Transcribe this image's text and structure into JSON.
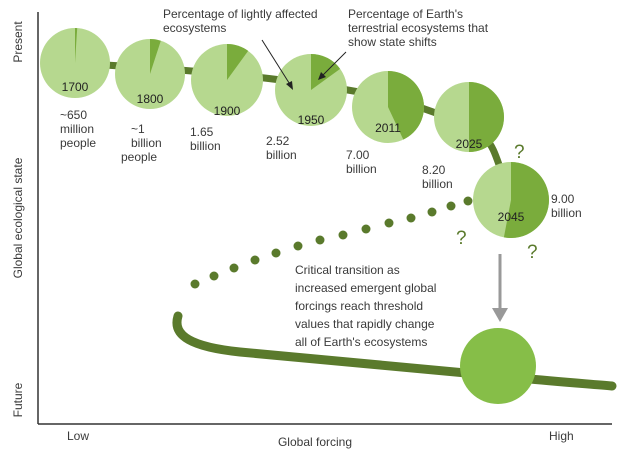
{
  "axes": {
    "y_label": "Global ecological state",
    "y_top": "Present",
    "y_bottom": "Future",
    "x_label": "Global forcing",
    "x_low": "Low",
    "x_high": "High"
  },
  "annotations": {
    "lightly_affected": [
      "Percentage of lightly affected",
      "ecosystems"
    ],
    "state_shifts": [
      "Percentage of Earth's",
      "terrestrial ecosystems that",
      "show state shifts"
    ],
    "critical_transition": [
      "Critical transition as",
      "increased emergent global",
      "forcings reach threshold",
      "values that rapidly change",
      "all of Earth's ecosystems"
    ],
    "question_mark": "?"
  },
  "timeline": [
    {
      "year": "1700",
      "population": [
        "~650",
        "million",
        "people"
      ],
      "shifted_fraction": 0.01
    },
    {
      "year": "1800",
      "population": [
        "~1",
        "billion",
        "people"
      ],
      "shifted_fraction": 0.05
    },
    {
      "year": "1900",
      "population": [
        "1.65",
        "billion"
      ],
      "shifted_fraction": 0.1
    },
    {
      "year": "1950",
      "population": [
        "2.52",
        "billion"
      ],
      "shifted_fraction": 0.15
    },
    {
      "year": "2011",
      "population": [
        "7.00",
        "billion"
      ],
      "shifted_fraction": 0.43
    },
    {
      "year": "2025",
      "population": [
        "8.20",
        "billion"
      ],
      "shifted_fraction": 0.5
    },
    {
      "year": "2045",
      "population": [
        "9.00",
        "billion"
      ],
      "shifted_fraction": 0.53
    }
  ],
  "colors": {
    "light_green": "#b6d88f",
    "dark_green": "#7aac3c",
    "curve": "#5a7a2c",
    "future_state": "#86be48",
    "arrow": "#999999",
    "axis": "#333333",
    "text": "#3a3a3a"
  }
}
